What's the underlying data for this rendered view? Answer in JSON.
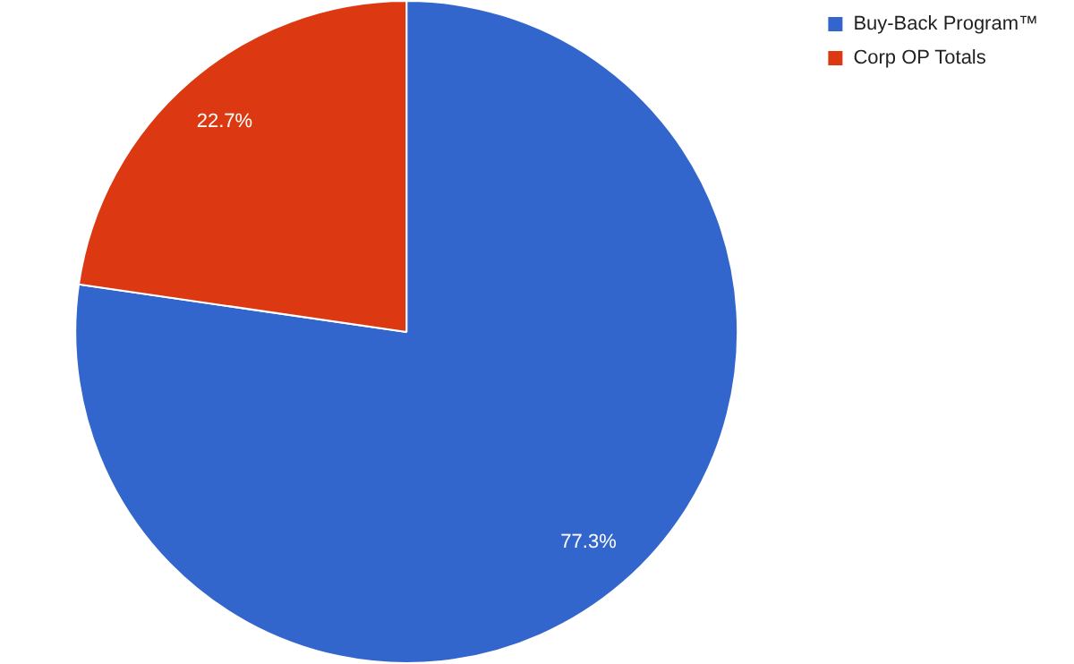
{
  "chart_data": {
    "type": "pie",
    "categories": [
      "Buy-Back Program™",
      "Corp OP Totals"
    ],
    "values": [
      77.3,
      22.7
    ],
    "colors": [
      "#3366cc",
      "#dc3912"
    ],
    "value_labels": [
      "77.3%",
      "22.7%"
    ],
    "legend": "top right"
  }
}
